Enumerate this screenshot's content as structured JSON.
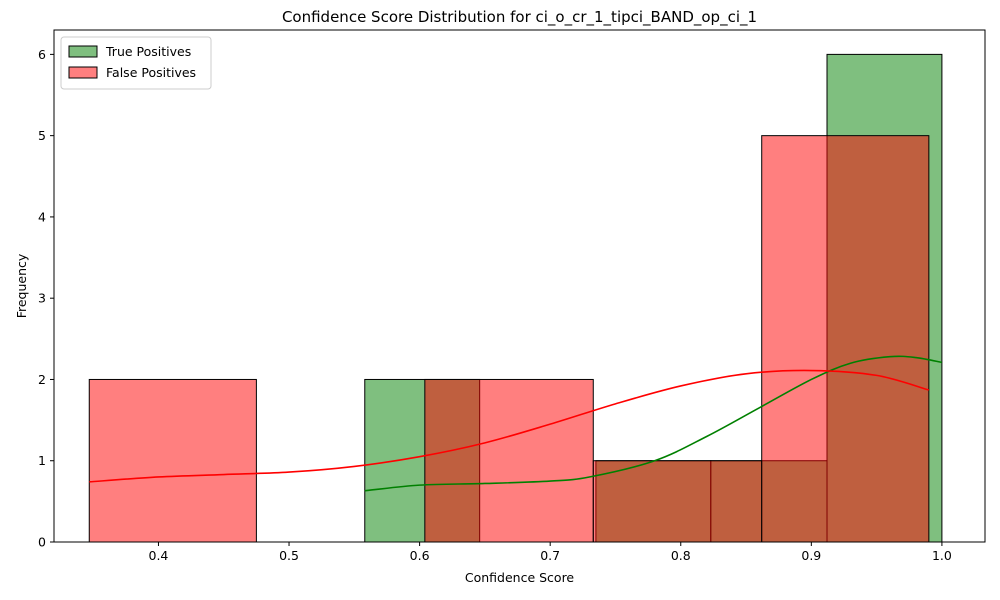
{
  "chart_data": {
    "type": "bar",
    "title": "Confidence Score Distribution for ci_o_cr_1_tipci_BAND_op_ci_1",
    "xlabel": "Confidence Score",
    "ylabel": "Frequency",
    "xlim": [
      0.32,
      1.033
    ],
    "ylim": [
      0,
      6.3
    ],
    "xticks": [
      "0.4",
      "0.5",
      "0.6",
      "0.7",
      "0.8",
      "0.9",
      "1.0"
    ],
    "yticks": [
      "0",
      "1",
      "2",
      "3",
      "4",
      "5",
      "6"
    ],
    "legend_position": "top-left",
    "series": [
      {
        "name": "True Positives",
        "color": "#008000",
        "bins": [
          {
            "x0": 0.558,
            "x1": 0.646,
            "count": 2
          },
          {
            "x0": 0.646,
            "x1": 0.735,
            "count": 0
          },
          {
            "x0": 0.735,
            "x1": 0.823,
            "count": 1
          },
          {
            "x0": 0.823,
            "x1": 0.912,
            "count": 1
          },
          {
            "x0": 0.912,
            "x1": 1.0,
            "count": 6
          }
        ],
        "kde": {
          "x": [
            0.558,
            0.6,
            0.65,
            0.7,
            0.73,
            0.78,
            0.82,
            0.86,
            0.9,
            0.93,
            0.96,
            0.98,
            1.0
          ],
          "y": [
            0.63,
            0.7,
            0.72,
            0.75,
            0.8,
            1.0,
            1.3,
            1.65,
            2.0,
            2.2,
            2.28,
            2.27,
            2.21
          ]
        }
      },
      {
        "name": "False Positives",
        "color": "#ff0000",
        "bins": [
          {
            "x0": 0.347,
            "x1": 0.475,
            "count": 2
          },
          {
            "x0": 0.475,
            "x1": 0.604,
            "count": 0
          },
          {
            "x0": 0.604,
            "x1": 0.733,
            "count": 2
          },
          {
            "x0": 0.733,
            "x1": 0.862,
            "count": 1
          },
          {
            "x0": 0.862,
            "x1": 0.99,
            "count": 5
          }
        ],
        "kde": {
          "x": [
            0.347,
            0.4,
            0.45,
            0.5,
            0.55,
            0.6,
            0.65,
            0.7,
            0.75,
            0.8,
            0.85,
            0.9,
            0.95,
            0.99
          ],
          "y": [
            0.74,
            0.8,
            0.83,
            0.86,
            0.93,
            1.05,
            1.22,
            1.45,
            1.7,
            1.92,
            2.07,
            2.11,
            2.05,
            1.87
          ]
        }
      }
    ]
  }
}
